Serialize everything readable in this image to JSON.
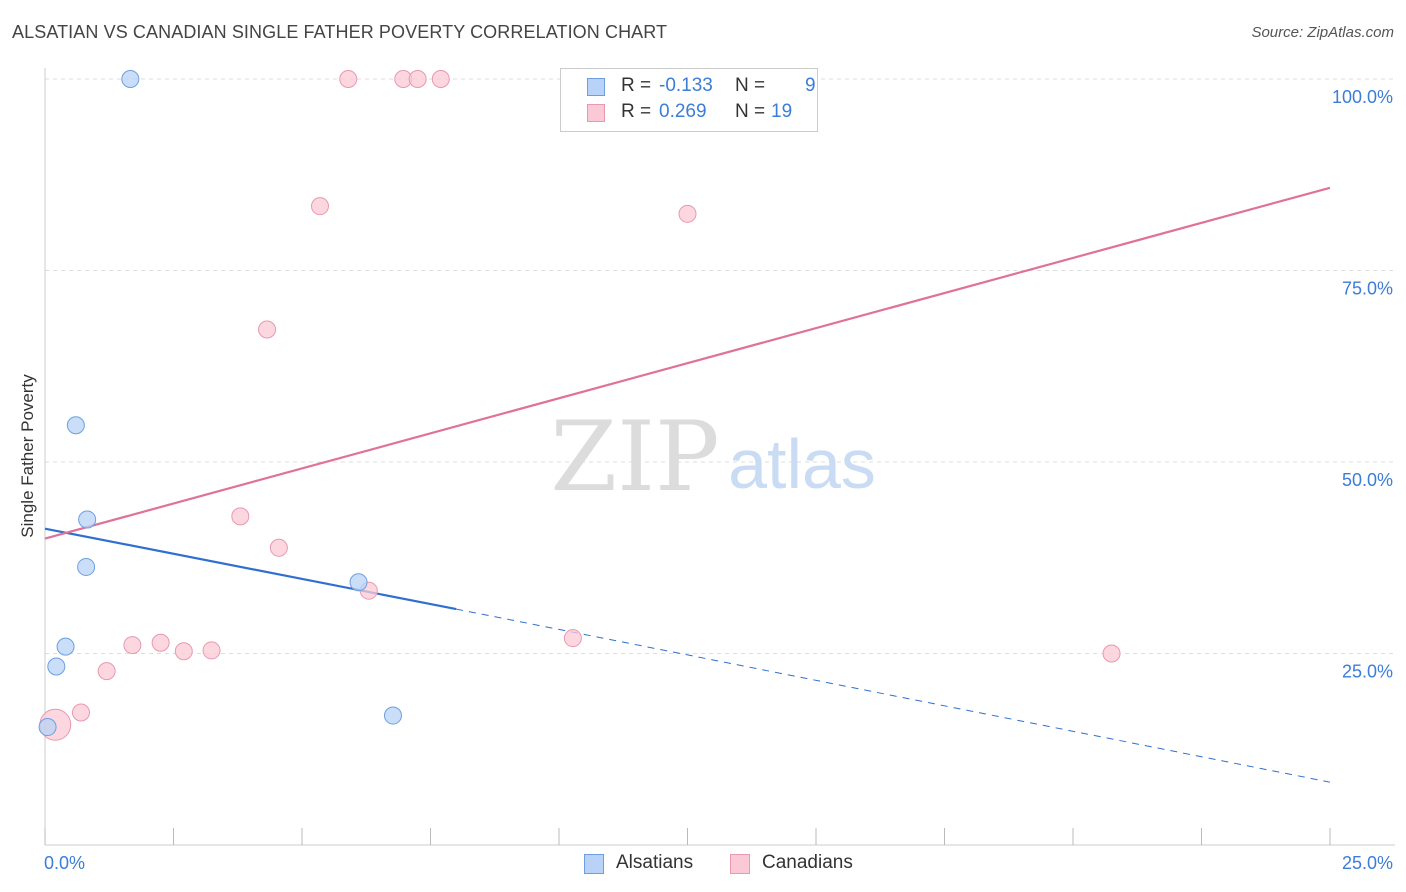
{
  "header": {
    "title": "ALSATIAN VS CANADIAN SINGLE FATHER POVERTY CORRELATION CHART",
    "source": "Source: ZipAtlas.com"
  },
  "colors": {
    "alsatians_fill": "#b8d3f7",
    "alsatians_stroke": "#6d9fe0",
    "alsatians_line": "#2f6fd0",
    "canadians_fill": "#fbc9d6",
    "canadians_stroke": "#e898b0",
    "canadians_line": "#e0719a",
    "tick_label": "#3b7dd8"
  },
  "legend": {
    "rows": [
      {
        "r_label": "R =",
        "r_value": "-0.133",
        "n_label": "N =",
        "n_value": "9"
      },
      {
        "r_label": "R =",
        "r_value": "0.269",
        "n_label": "N =",
        "n_value": "19"
      }
    ]
  },
  "bottom_legend": {
    "series1": "Alsatians",
    "series2": "Canadians"
  },
  "watermark": {
    "zip": "ZIP",
    "atlas": "atlas"
  },
  "chart_data": {
    "type": "scatter",
    "title": "ALSATIAN VS CANADIAN SINGLE FATHER POVERTY CORRELATION CHART",
    "xlabel": "",
    "ylabel": "Single Father Poverty",
    "xlim": [
      0,
      25
    ],
    "ylim": [
      0,
      100
    ],
    "x_tick_labels": [
      "0.0%",
      "25.0%"
    ],
    "y_tick_values": [
      25,
      50,
      75,
      100
    ],
    "y_tick_labels": [
      "25.0%",
      "50.0%",
      "75.0%",
      "100.0%"
    ],
    "grid": true,
    "legend_position": "top-center",
    "series": [
      {
        "name": "Alsatians",
        "points": [
          {
            "x": 1.66,
            "y": 100.0,
            "size": 1
          },
          {
            "x": 0.6,
            "y": 54.8,
            "size": 1
          },
          {
            "x": 0.82,
            "y": 42.5,
            "size": 1
          },
          {
            "x": 0.8,
            "y": 36.3,
            "size": 1
          },
          {
            "x": 6.1,
            "y": 34.3,
            "size": 1
          },
          {
            "x": 0.4,
            "y": 25.9,
            "size": 1
          },
          {
            "x": 0.22,
            "y": 23.3,
            "size": 1
          },
          {
            "x": 6.77,
            "y": 16.9,
            "size": 1
          },
          {
            "x": 0.05,
            "y": 15.4,
            "size": 1
          }
        ],
        "trend": {
          "x_start": 0.0,
          "y_start": 41.3,
          "x_solid_end": 8.0,
          "y_solid_end": 30.8,
          "x_end": 25.0,
          "y_end": 8.2
        }
      },
      {
        "name": "Canadians",
        "points": [
          {
            "x": 5.9,
            "y": 100.0,
            "size": 1
          },
          {
            "x": 6.97,
            "y": 100.0,
            "size": 1
          },
          {
            "x": 7.25,
            "y": 100.0,
            "size": 1
          },
          {
            "x": 7.7,
            "y": 100.0,
            "size": 1
          },
          {
            "x": 5.35,
            "y": 83.4,
            "size": 1
          },
          {
            "x": 12.5,
            "y": 82.4,
            "size": 1
          },
          {
            "x": 4.32,
            "y": 67.3,
            "size": 1
          },
          {
            "x": 3.8,
            "y": 42.9,
            "size": 1
          },
          {
            "x": 4.55,
            "y": 38.8,
            "size": 1
          },
          {
            "x": 6.3,
            "y": 33.2,
            "size": 1
          },
          {
            "x": 10.27,
            "y": 27.0,
            "size": 1
          },
          {
            "x": 2.25,
            "y": 26.4,
            "size": 1
          },
          {
            "x": 1.7,
            "y": 26.1,
            "size": 1
          },
          {
            "x": 2.7,
            "y": 25.3,
            "size": 1
          },
          {
            "x": 3.24,
            "y": 25.4,
            "size": 1
          },
          {
            "x": 20.75,
            "y": 25.0,
            "size": 1
          },
          {
            "x": 1.2,
            "y": 22.7,
            "size": 1
          },
          {
            "x": 0.7,
            "y": 17.3,
            "size": 1
          },
          {
            "x": 0.2,
            "y": 15.7,
            "size": 3
          }
        ],
        "trend": {
          "x_start": 0.0,
          "y_start": 40.0,
          "x_end": 25.0,
          "y_end": 85.8
        }
      }
    ]
  }
}
